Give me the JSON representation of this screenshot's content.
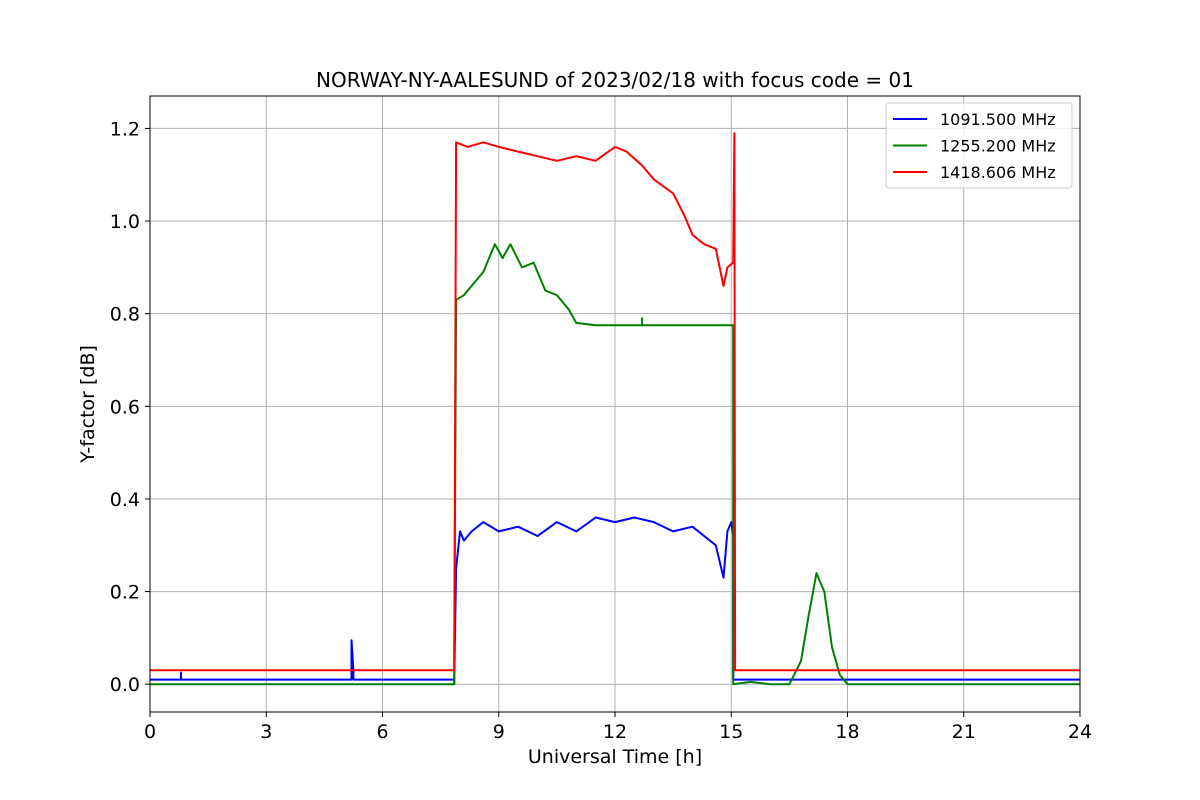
{
  "chart_data": {
    "type": "line",
    "title": "NORWAY-NY-AALESUND of 2023/02/18 with focus code = 01",
    "xlabel": "Universal Time [h]",
    "ylabel": "Y-factor [dB]",
    "xlim": [
      0,
      24
    ],
    "ylim": [
      -0.06,
      1.27
    ],
    "xticks": [
      0,
      3,
      6,
      9,
      12,
      15,
      18,
      21,
      24
    ],
    "xtick_labels": [
      "0",
      "3",
      "6",
      "9",
      "12",
      "15",
      "18",
      "21",
      "24"
    ],
    "yticks": [
      0.0,
      0.2,
      0.4,
      0.6,
      0.8,
      1.0,
      1.2
    ],
    "ytick_labels": [
      "0.0",
      "0.2",
      "0.4",
      "0.6",
      "0.8",
      "1.0",
      "1.2"
    ],
    "grid": true,
    "legend_position": "top-right",
    "series": [
      {
        "name": "1091.500 MHz",
        "color": "#0000ff",
        "x": [
          0,
          0.8,
          0.8,
          0.8,
          5.2,
          5.2,
          5.25,
          5.25,
          7.85,
          7.85,
          7.9,
          8.0,
          8.1,
          8.3,
          8.6,
          9.0,
          9.5,
          10.0,
          10.5,
          11.0,
          11.5,
          12.0,
          12.5,
          13.0,
          13.5,
          14.0,
          14.3,
          14.6,
          14.8,
          14.9,
          15.0,
          15.05,
          15.05,
          24
        ],
        "y": [
          0.01,
          0.01,
          0.025,
          0.01,
          0.01,
          0.095,
          0.03,
          0.01,
          0.01,
          0.0,
          0.25,
          0.33,
          0.31,
          0.33,
          0.35,
          0.33,
          0.34,
          0.32,
          0.35,
          0.33,
          0.36,
          0.35,
          0.36,
          0.35,
          0.33,
          0.34,
          0.32,
          0.3,
          0.23,
          0.33,
          0.35,
          0.32,
          0.01,
          0.01
        ]
      },
      {
        "name": "1255.200 MHz",
        "color": "#008000",
        "x": [
          0,
          7.85,
          7.85,
          7.9,
          8.1,
          8.3,
          8.6,
          8.9,
          9.1,
          9.3,
          9.6,
          9.9,
          10.2,
          10.5,
          10.8,
          11.0,
          11.5,
          12.0,
          12.7,
          12.7,
          12.7,
          13.0,
          14.0,
          15.05,
          15.05,
          15.5,
          16.0,
          16.5,
          16.8,
          17.0,
          17.2,
          17.4,
          17.6,
          17.8,
          18.0,
          18.5,
          24
        ],
        "y": [
          0.0,
          0.0,
          0.0,
          0.83,
          0.84,
          0.86,
          0.89,
          0.95,
          0.92,
          0.95,
          0.9,
          0.91,
          0.85,
          0.84,
          0.81,
          0.78,
          0.775,
          0.775,
          0.775,
          0.79,
          0.775,
          0.775,
          0.775,
          0.775,
          0.0,
          0.005,
          0.0,
          0.0,
          0.05,
          0.15,
          0.24,
          0.2,
          0.08,
          0.02,
          0.0,
          0.0,
          0.0
        ]
      },
      {
        "name": "1418.606 MHz",
        "color": "#ff0000",
        "x": [
          0,
          7.85,
          7.85,
          7.9,
          8.2,
          8.6,
          9.0,
          9.5,
          10.0,
          10.5,
          11.0,
          11.5,
          12.0,
          12.3,
          12.7,
          13.0,
          13.5,
          13.8,
          14.0,
          14.3,
          14.6,
          14.8,
          14.9,
          15.05,
          15.08,
          15.1,
          15.1,
          24
        ],
        "y": [
          0.03,
          0.03,
          0.03,
          1.17,
          1.16,
          1.17,
          1.16,
          1.15,
          1.14,
          1.13,
          1.14,
          1.13,
          1.16,
          1.15,
          1.12,
          1.09,
          1.06,
          1.01,
          0.97,
          0.95,
          0.94,
          0.86,
          0.9,
          0.91,
          1.19,
          0.03,
          0.03,
          0.03
        ]
      }
    ]
  }
}
